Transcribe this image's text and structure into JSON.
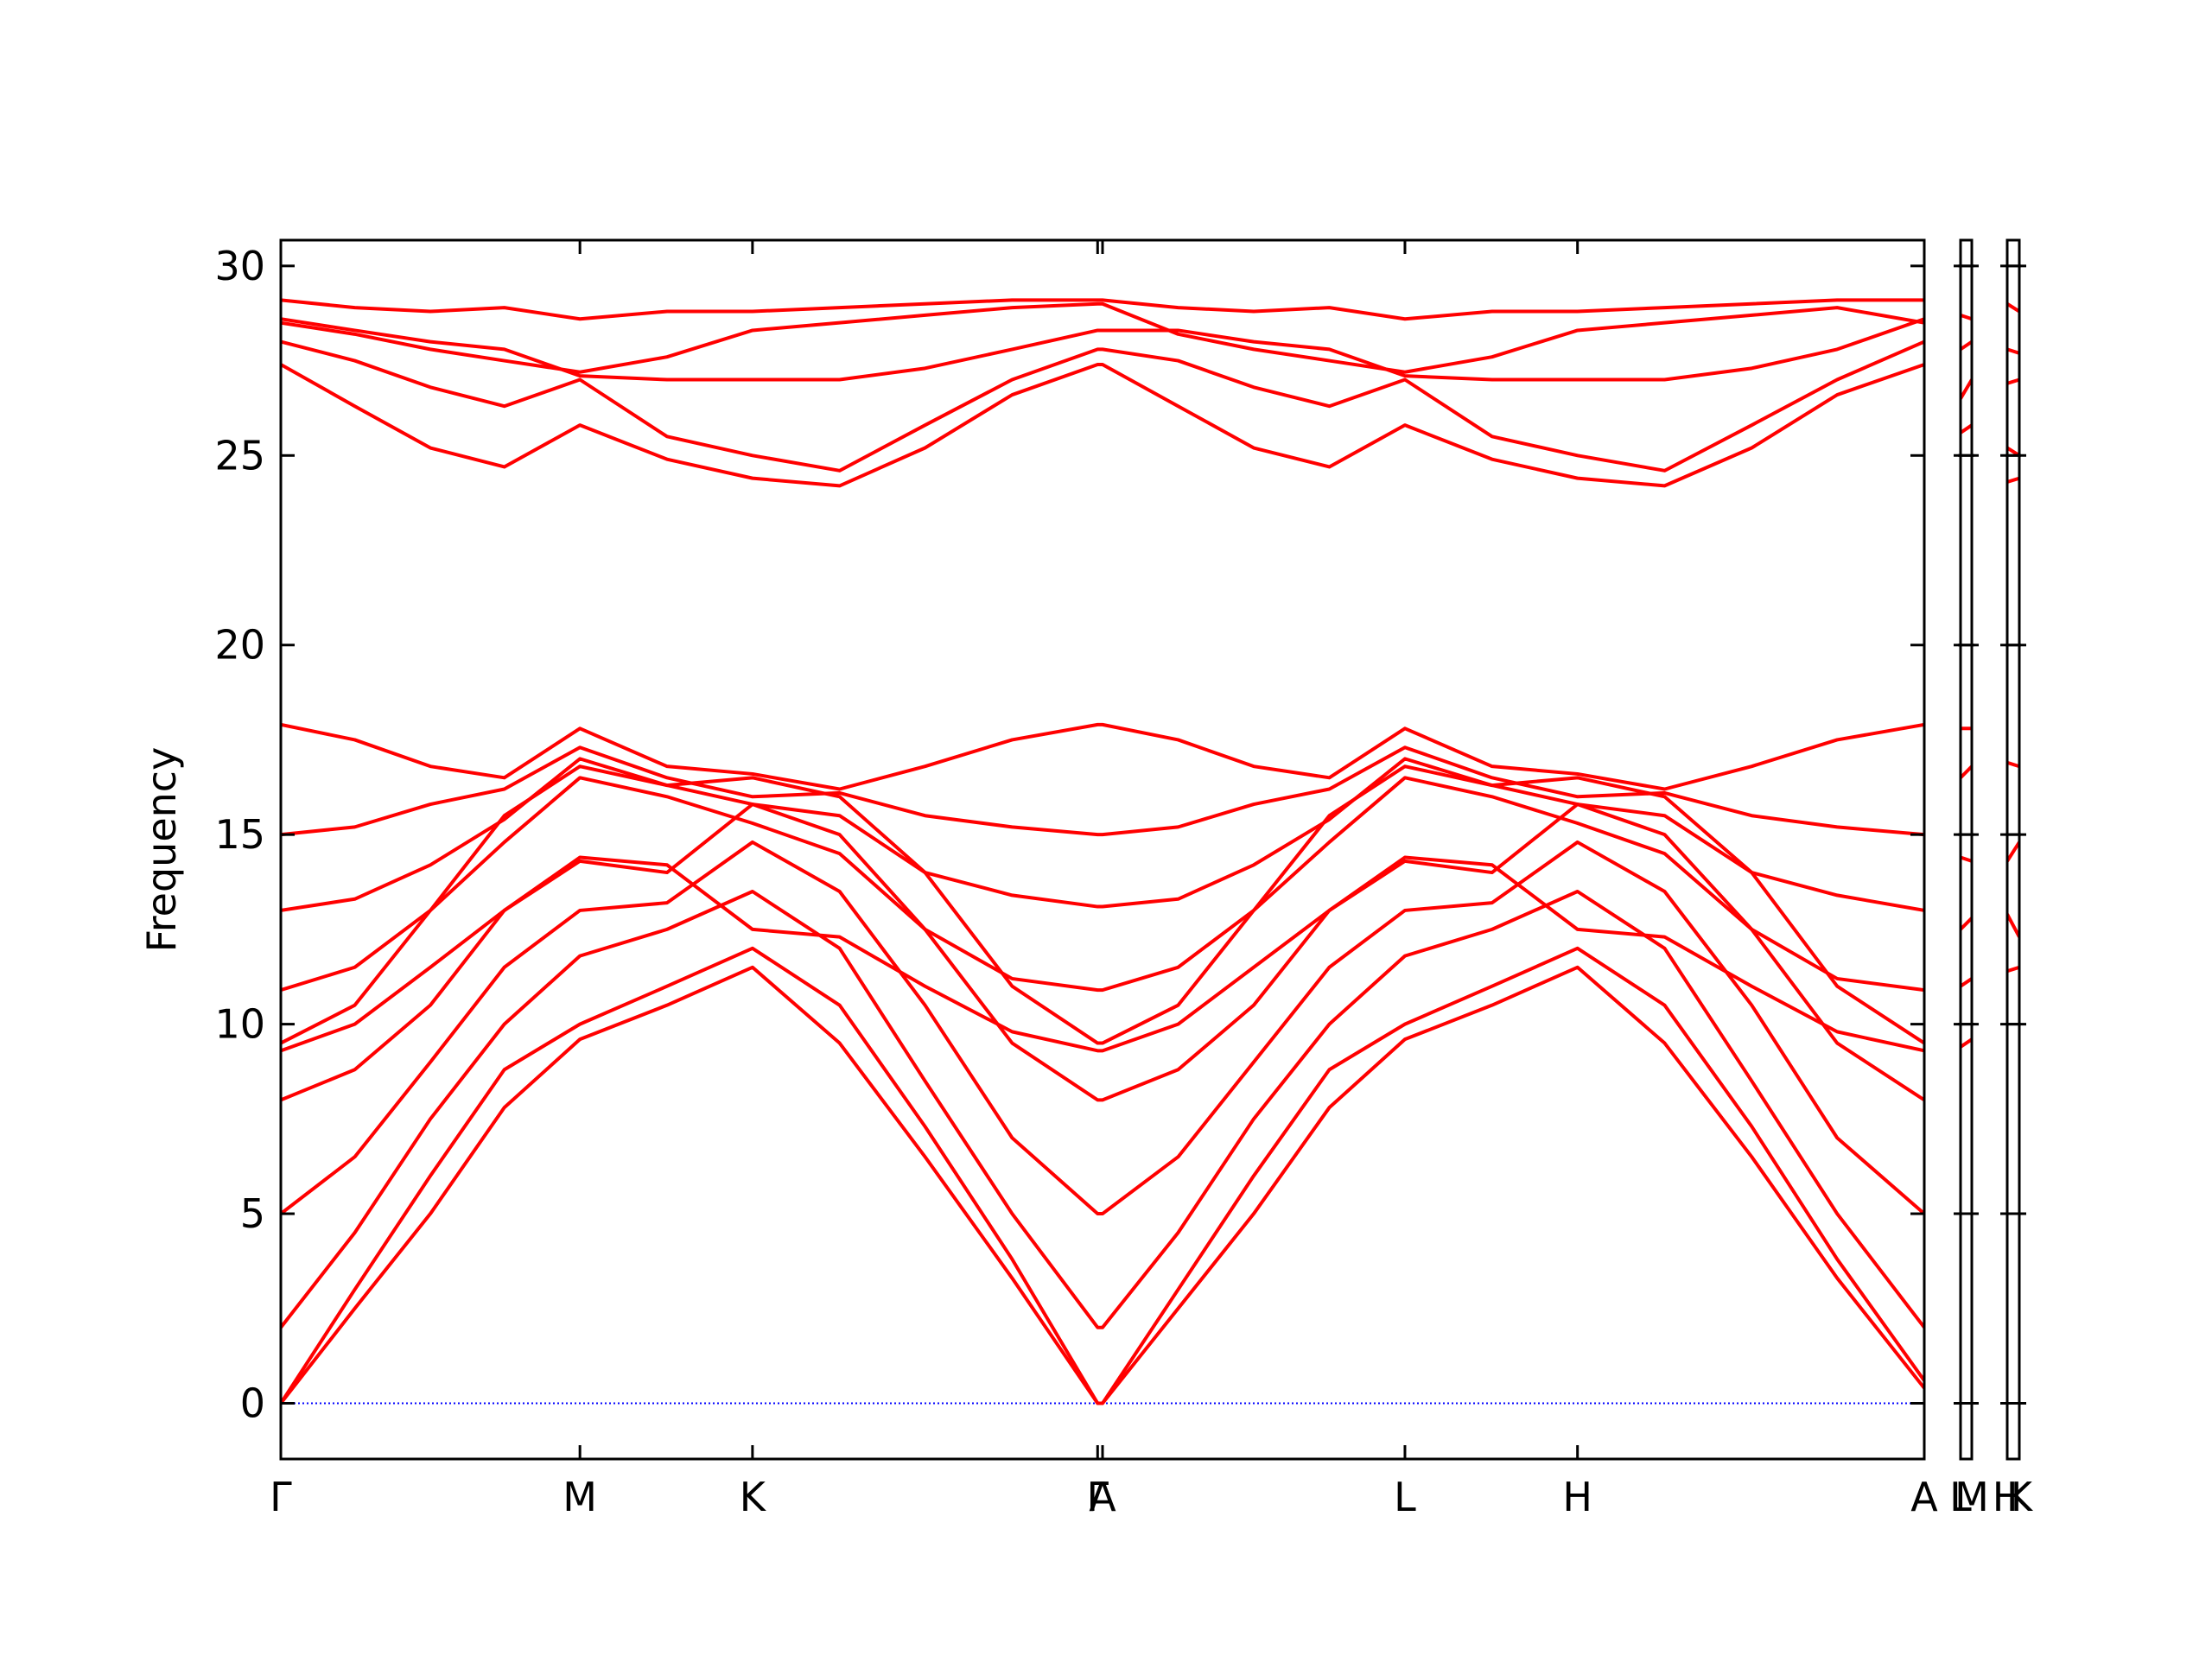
{
  "chart_data": [
    {
      "type": "line",
      "ylabel": "Frequency",
      "x": [
        0,
        0.045,
        0.091,
        0.136,
        0.182,
        0.235,
        0.287,
        0.34,
        0.392,
        0.445,
        0.497,
        0.5,
        0.546,
        0.592,
        0.638,
        0.684,
        0.737,
        0.789,
        0.842,
        0.895,
        0.947,
        1.0
      ],
      "xlim": [
        0,
        1
      ],
      "xticks": [
        {
          "value": 0,
          "label": "Γ"
        },
        {
          "value": 0.182,
          "label": "M"
        },
        {
          "value": 0.287,
          "label": "K"
        },
        {
          "value": 0.497,
          "label": "Γ"
        },
        {
          "value": 0.5,
          "label": "A"
        },
        {
          "value": 0.684,
          "label": "L"
        },
        {
          "value": 0.789,
          "label": "H"
        },
        {
          "value": 1.0,
          "label": "A"
        }
      ],
      "ylim": [
        -1.47,
        30.68
      ],
      "yticks": [
        0,
        5,
        10,
        15,
        20,
        25,
        30
      ],
      "hlines": [
        0
      ],
      "hline_color": "#0000ff",
      "series": [
        {
          "color": "#ff0000",
          "values": [
            0,
            2.5,
            5.0,
            7.8,
            9.6,
            10.5,
            11.5,
            9.5,
            6.5,
            3.3,
            0,
            0,
            2.5,
            5.0,
            7.8,
            9.6,
            10.5,
            11.5,
            9.5,
            6.5,
            3.3,
            0.4
          ]
        },
        {
          "color": "#ff0000",
          "values": [
            0,
            3.0,
            6.0,
            8.8,
            10.0,
            11.0,
            12.0,
            10.5,
            7.3,
            3.8,
            0,
            0,
            3.0,
            6.0,
            8.8,
            10.0,
            11.0,
            12.0,
            10.5,
            7.3,
            3.8,
            0.6
          ]
        },
        {
          "color": "#ff0000",
          "values": [
            2.0,
            4.5,
            7.5,
            10.0,
            11.8,
            12.5,
            13.5,
            12.0,
            8.5,
            5.0,
            2.0,
            2.0,
            4.5,
            7.5,
            10.0,
            11.8,
            12.5,
            13.5,
            12.0,
            8.5,
            5.0,
            2.0
          ]
        },
        {
          "color": "#ff0000",
          "values": [
            5.0,
            6.5,
            9.0,
            11.5,
            13.0,
            13.2,
            14.8,
            13.5,
            10.5,
            7.0,
            5.0,
            5.0,
            6.5,
            9.0,
            11.5,
            13.0,
            13.2,
            14.8,
            13.5,
            10.5,
            7.0,
            5.0
          ]
        },
        {
          "color": "#ff0000",
          "values": [
            8.0,
            8.8,
            10.5,
            13.0,
            14.3,
            14.0,
            15.8,
            15.0,
            12.5,
            9.5,
            8.0,
            8.0,
            8.8,
            10.5,
            13.0,
            14.3,
            14.0,
            15.8,
            15.0,
            12.5,
            9.5,
            8.0
          ]
        },
        {
          "color": "#ff0000",
          "values": [
            9.5,
            10.5,
            13.0,
            15.5,
            16.8,
            16.3,
            16.5,
            16.0,
            14.0,
            11.0,
            9.5,
            9.5,
            10.5,
            13.0,
            15.5,
            16.8,
            16.3,
            16.5,
            16.0,
            14.0,
            11.0,
            9.5
          ]
        },
        {
          "color": "#ff0000",
          "values": [
            9.3,
            10.0,
            11.5,
            13.0,
            14.4,
            14.2,
            12.5,
            12.3,
            11.0,
            9.8,
            9.3,
            9.3,
            10.0,
            11.5,
            13.0,
            14.4,
            14.2,
            12.5,
            12.3,
            11.0,
            9.8,
            9.3
          ]
        },
        {
          "color": "#ff0000",
          "values": [
            17.9,
            17.5,
            16.8,
            16.5,
            17.8,
            16.8,
            16.6,
            16.2,
            16.8,
            17.5,
            17.9,
            17.9,
            17.5,
            16.8,
            16.5,
            17.8,
            16.8,
            16.6,
            16.2,
            16.8,
            17.5,
            17.9
          ]
        },
        {
          "color": "#ff0000",
          "values": [
            15.0,
            15.2,
            15.8,
            16.2,
            17.3,
            16.5,
            16.0,
            16.1,
            15.5,
            15.2,
            15.0,
            15.0,
            15.2,
            15.8,
            16.2,
            17.3,
            16.5,
            16.0,
            16.1,
            15.5,
            15.2,
            15.0
          ]
        },
        {
          "color": "#ff0000",
          "values": [
            13.0,
            13.3,
            14.2,
            15.4,
            17.0,
            16.3,
            15.8,
            15.5,
            14.0,
            13.4,
            13.1,
            13.1,
            13.3,
            14.2,
            15.4,
            17.0,
            16.3,
            15.8,
            15.5,
            14.0,
            13.4,
            13.0
          ]
        },
        {
          "color": "#ff0000",
          "values": [
            10.9,
            11.5,
            13.0,
            14.8,
            16.5,
            16.0,
            15.3,
            14.5,
            12.5,
            11.2,
            10.9,
            10.9,
            11.5,
            13.0,
            14.8,
            16.5,
            16.0,
            15.3,
            14.5,
            12.5,
            11.2,
            10.9
          ]
        },
        {
          "color": "#ff0000",
          "values": [
            29.1,
            28.9,
            28.8,
            28.9,
            28.6,
            28.8,
            28.8,
            28.9,
            29.0,
            29.1,
            29.1,
            29.1,
            28.9,
            28.8,
            28.9,
            28.6,
            28.8,
            28.8,
            28.9,
            29.0,
            29.1,
            29.1
          ]
        },
        {
          "color": "#ff0000",
          "values": [
            28.5,
            28.2,
            27.8,
            27.5,
            27.2,
            27.6,
            28.3,
            28.5,
            28.7,
            28.9,
            29.0,
            29.0,
            28.2,
            27.8,
            27.5,
            27.2,
            27.6,
            28.3,
            28.5,
            28.7,
            28.9,
            28.5
          ]
        },
        {
          "color": "#ff0000",
          "values": [
            27.4,
            26.3,
            25.2,
            24.7,
            25.8,
            24.9,
            24.4,
            24.2,
            25.2,
            26.6,
            27.4,
            27.4,
            26.3,
            25.2,
            24.7,
            25.8,
            24.9,
            24.4,
            24.2,
            25.2,
            26.6,
            27.4
          ]
        },
        {
          "color": "#ff0000",
          "values": [
            28.0,
            27.5,
            26.8,
            26.3,
            27.0,
            25.5,
            25.0,
            24.6,
            25.8,
            27.0,
            27.8,
            27.8,
            27.5,
            26.8,
            26.3,
            27.0,
            25.5,
            25.0,
            24.6,
            25.8,
            27.0,
            28.0
          ]
        },
        {
          "color": "#ff0000",
          "values": [
            28.6,
            28.3,
            28.0,
            27.8,
            27.1,
            27.0,
            27.0,
            27.0,
            27.3,
            27.8,
            28.3,
            28.3,
            28.3,
            28.0,
            27.8,
            27.1,
            27.0,
            27.0,
            27.0,
            27.3,
            27.8,
            28.6
          ]
        }
      ]
    },
    {
      "type": "line",
      "x": [
        0,
        1
      ],
      "xlim": [
        0,
        1
      ],
      "xticks": [
        {
          "value": 0,
          "label": "L"
        },
        {
          "value": 1,
          "label": "M"
        }
      ],
      "ylim": [
        -1.47,
        30.68
      ],
      "yticks": [
        0,
        5,
        10,
        15,
        20,
        25,
        30
      ],
      "hlines": [
        0
      ],
      "hline_color": "#0000ff",
      "series": [
        {
          "color": "#ff0000",
          "values": [
            25.6,
            25.8
          ]
        },
        {
          "color": "#ff0000",
          "values": [
            26.5,
            27.0
          ]
        },
        {
          "color": "#ff0000",
          "values": [
            27.8,
            28.0
          ]
        },
        {
          "color": "#ff0000",
          "values": [
            28.7,
            28.6
          ]
        },
        {
          "color": "#ff0000",
          "values": [
            16.5,
            16.8
          ]
        },
        {
          "color": "#ff0000",
          "values": [
            17.8,
            17.8
          ]
        },
        {
          "color": "#ff0000",
          "values": [
            9.4,
            9.6
          ]
        },
        {
          "color": "#ff0000",
          "values": [
            11.0,
            11.2
          ]
        },
        {
          "color": "#ff0000",
          "values": [
            12.5,
            12.8
          ]
        },
        {
          "color": "#ff0000",
          "values": [
            14.4,
            14.3
          ]
        }
      ]
    },
    {
      "type": "line",
      "x": [
        0,
        1
      ],
      "xlim": [
        0,
        1
      ],
      "xticks": [
        {
          "value": 0,
          "label": "H"
        },
        {
          "value": 1,
          "label": "K"
        }
      ],
      "ylim": [
        -1.47,
        30.68
      ],
      "yticks": [
        0,
        5,
        10,
        15,
        20,
        25,
        30
      ],
      "hlines": [
        0
      ],
      "hline_color": "#0000ff",
      "series": [
        {
          "color": "#ff0000",
          "values": [
            24.3,
            24.4
          ]
        },
        {
          "color": "#ff0000",
          "values": [
            25.2,
            25.0
          ]
        },
        {
          "color": "#ff0000",
          "values": [
            26.9,
            27.0
          ]
        },
        {
          "color": "#ff0000",
          "values": [
            27.8,
            27.7
          ]
        },
        {
          "color": "#ff0000",
          "values": [
            29.0,
            28.8
          ]
        },
        {
          "color": "#ff0000",
          "values": [
            14.3,
            14.8
          ]
        },
        {
          "color": "#ff0000",
          "values": [
            16.9,
            16.8
          ]
        },
        {
          "color": "#ff0000",
          "values": [
            11.4,
            11.5
          ]
        },
        {
          "color": "#ff0000",
          "values": [
            12.9,
            12.3
          ]
        }
      ]
    }
  ]
}
